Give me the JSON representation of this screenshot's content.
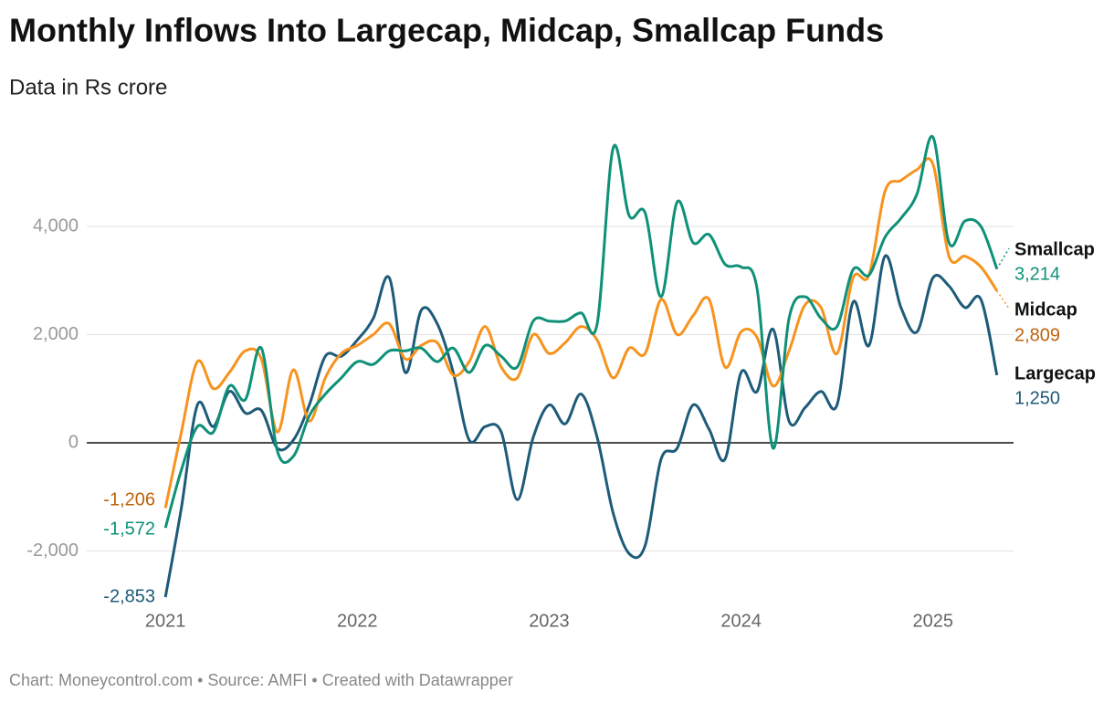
{
  "chart_data": {
    "type": "line",
    "title": "Monthly Inflows Into Largecap, Midcap, Smallcap Funds",
    "subtitle": "Data in Rs crore",
    "source": "Chart: Moneycontrol.com • Source: AMFI • Created with Datawrapper",
    "x": [
      "2021-01",
      "2021-02",
      "2021-03",
      "2021-04",
      "2021-05",
      "2021-06",
      "2021-07",
      "2021-08",
      "2021-09",
      "2021-10",
      "2021-11",
      "2021-12",
      "2022-01",
      "2022-02",
      "2022-03",
      "2022-04",
      "2022-05",
      "2022-06",
      "2022-07",
      "2022-08",
      "2022-09",
      "2022-10",
      "2022-11",
      "2022-12",
      "2023-01",
      "2023-02",
      "2023-03",
      "2023-04",
      "2023-05",
      "2023-06",
      "2023-07",
      "2023-08",
      "2023-09",
      "2023-10",
      "2023-11",
      "2023-12",
      "2024-01",
      "2024-02",
      "2024-03",
      "2024-04",
      "2024-05",
      "2024-06",
      "2024-07",
      "2024-08",
      "2024-09",
      "2024-10",
      "2024-11",
      "2024-12",
      "2025-01",
      "2025-02",
      "2025-03",
      "2025-04",
      "2025-05"
    ],
    "xlim": [
      2020.59,
      2025.42
    ],
    "xticks": [
      2021,
      2022,
      2023,
      2024,
      2025
    ],
    "ylim": [
      -3000,
      6000
    ],
    "yticks": [
      {
        "value": -2000,
        "label": "-2,000"
      },
      0,
      {
        "value": 2000,
        "label": "2,000"
      },
      {
        "value": 4000,
        "label": "4,000"
      }
    ],
    "grid": true,
    "series": [
      {
        "name": "Smallcap",
        "color": "#0e9178",
        "label_color": "#0e9178",
        "values": [
          -1572,
          -500,
          300,
          200,
          1050,
          800,
          1750,
          -150,
          -250,
          500,
          900,
          1200,
          1500,
          1450,
          1700,
          1700,
          1750,
          1500,
          1750,
          1300,
          1800,
          1600,
          1400,
          2250,
          2250,
          2250,
          2400,
          2200,
          5450,
          4200,
          4250,
          2700,
          4450,
          3700,
          3850,
          3300,
          3250,
          2850,
          -100,
          2300,
          2700,
          2300,
          2150,
          3200,
          3100,
          3800,
          4150,
          4600,
          5650,
          3700,
          4100,
          4000,
          3214
        ],
        "value_labels": [
          "-1,572",
          null,
          null,
          null,
          null,
          null,
          null,
          null,
          null,
          null,
          null,
          null,
          null,
          null,
          null,
          null,
          null,
          null,
          null,
          null,
          null,
          null,
          null,
          null,
          null,
          null,
          null,
          null,
          null,
          null,
          null,
          null,
          null,
          null,
          null,
          null,
          null,
          null,
          null,
          null,
          null,
          null,
          null,
          null,
          null,
          null,
          null,
          null,
          null,
          null,
          null,
          null,
          "3,214"
        ]
      },
      {
        "name": "Midcap",
        "color": "#f7931e",
        "label_color": "#c0620a",
        "values": [
          -1206,
          200,
          1500,
          1000,
          1300,
          1700,
          1550,
          200,
          1350,
          400,
          1200,
          1650,
          1800,
          2000,
          2200,
          1550,
          1800,
          1850,
          1250,
          1500,
          2150,
          1400,
          1200,
          2000,
          1650,
          1850,
          2150,
          1900,
          1200,
          1750,
          1650,
          2650,
          2000,
          2350,
          2650,
          1400,
          2050,
          1950,
          1050,
          1700,
          2550,
          2500,
          1650,
          3050,
          3100,
          4650,
          4850,
          5050,
          5150,
          3450,
          3450,
          3250,
          2809
        ],
        "value_labels": [
          "-1,206",
          null,
          null,
          null,
          null,
          null,
          null,
          null,
          null,
          null,
          null,
          null,
          null,
          null,
          null,
          null,
          null,
          null,
          null,
          null,
          null,
          null,
          null,
          null,
          null,
          null,
          null,
          null,
          null,
          null,
          null,
          null,
          null,
          null,
          null,
          null,
          null,
          null,
          null,
          null,
          null,
          null,
          null,
          null,
          null,
          null,
          null,
          null,
          null,
          null,
          null,
          null,
          "2,809"
        ]
      },
      {
        "name": "Largecap",
        "color": "#1d5b79",
        "label_color": "#1d5b79",
        "values": [
          -2853,
          -1200,
          700,
          300,
          950,
          550,
          600,
          -100,
          50,
          700,
          1600,
          1600,
          1900,
          2300,
          3050,
          1300,
          2450,
          2200,
          1300,
          50,
          300,
          200,
          -1050,
          100,
          700,
          350,
          900,
          100,
          -1300,
          -2050,
          -1900,
          -300,
          -100,
          700,
          250,
          -300,
          1300,
          950,
          2100,
          400,
          650,
          950,
          700,
          2600,
          1800,
          3450,
          2500,
          2050,
          3050,
          2900,
          2500,
          2650,
          1250
        ],
        "value_labels": [
          "-2,853",
          null,
          null,
          null,
          null,
          null,
          null,
          null,
          null,
          null,
          null,
          null,
          null,
          null,
          null,
          null,
          null,
          null,
          null,
          null,
          null,
          null,
          null,
          null,
          null,
          null,
          null,
          null,
          null,
          null,
          null,
          null,
          null,
          null,
          null,
          null,
          null,
          null,
          null,
          null,
          null,
          null,
          null,
          null,
          null,
          null,
          null,
          null,
          null,
          null,
          null,
          null,
          "1,250"
        ]
      }
    ]
  }
}
